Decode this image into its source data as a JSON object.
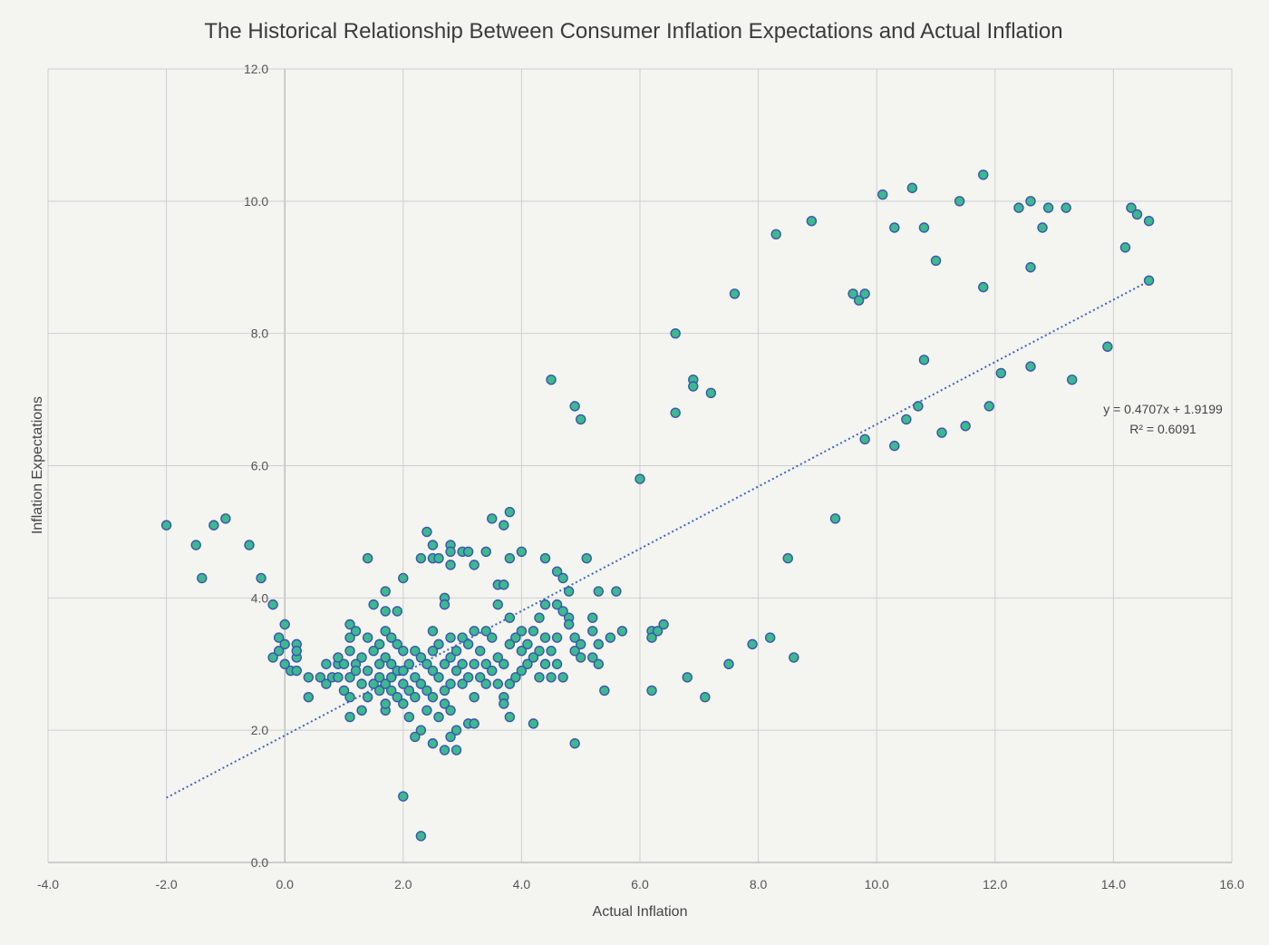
{
  "chart_data": {
    "type": "scatter",
    "title": "The Historical Relationship Between Consumer Inflation Expectations and Actual Inflation",
    "xlabel": "Actual Inflation",
    "ylabel": "Inflation Expectations",
    "xlim": [
      -4,
      16
    ],
    "ylim": [
      0,
      12
    ],
    "x_ticks": [
      "-4.0",
      "-2.0",
      "0.0",
      "2.0",
      "4.0",
      "6.0",
      "8.0",
      "10.0",
      "12.0",
      "14.0",
      "16.0"
    ],
    "y_ticks": [
      "0.0",
      "2.0",
      "4.0",
      "6.0",
      "8.0",
      "10.0",
      "12.0"
    ],
    "grid": true,
    "legend": "none",
    "trendline": {
      "slope": 0.4707,
      "intercept": 1.9199,
      "x_range": [
        -2.0,
        14.6
      ],
      "equation": "y = 0.4707x + 1.9199",
      "r_squared": "R² = 0.6091",
      "style": "dotted"
    },
    "colors": {
      "marker_fill": "#3cb98e",
      "marker_edge": "#3a55b0",
      "trendline": "#3a65c4",
      "background": "#f4f4f0",
      "grid": "#cfcfcf"
    },
    "points": [
      [
        -2.0,
        5.1
      ],
      [
        -1.5,
        4.8
      ],
      [
        -1.4,
        4.3
      ],
      [
        -1.2,
        5.1
      ],
      [
        -1.0,
        5.2
      ],
      [
        -0.6,
        4.8
      ],
      [
        -0.4,
        4.3
      ],
      [
        -0.2,
        3.9
      ],
      [
        -0.2,
        3.1
      ],
      [
        -0.1,
        3.2
      ],
      [
        -0.1,
        3.4
      ],
      [
        0.0,
        3.3
      ],
      [
        0.0,
        3.6
      ],
      [
        0.0,
        3.0
      ],
      [
        0.1,
        2.9
      ],
      [
        0.2,
        3.1
      ],
      [
        0.2,
        3.3
      ],
      [
        0.2,
        2.9
      ],
      [
        0.2,
        3.2
      ],
      [
        0.4,
        2.8
      ],
      [
        0.4,
        2.5
      ],
      [
        0.6,
        2.8
      ],
      [
        0.7,
        3.0
      ],
      [
        0.7,
        2.7
      ],
      [
        0.8,
        2.8
      ],
      [
        0.9,
        2.8
      ],
      [
        0.9,
        3.0
      ],
      [
        0.9,
        3.1
      ],
      [
        1.0,
        2.6
      ],
      [
        1.0,
        3.0
      ],
      [
        1.1,
        2.2
      ],
      [
        1.1,
        2.5
      ],
      [
        1.1,
        2.8
      ],
      [
        1.1,
        3.2
      ],
      [
        1.1,
        3.4
      ],
      [
        1.1,
        3.6
      ],
      [
        1.2,
        3.0
      ],
      [
        1.2,
        3.5
      ],
      [
        1.2,
        2.9
      ],
      [
        1.3,
        2.3
      ],
      [
        1.3,
        2.7
      ],
      [
        1.3,
        3.1
      ],
      [
        1.4,
        4.6
      ],
      [
        1.4,
        3.4
      ],
      [
        1.4,
        2.5
      ],
      [
        1.4,
        2.9
      ],
      [
        1.5,
        3.9
      ],
      [
        1.5,
        3.2
      ],
      [
        1.5,
        2.7
      ],
      [
        1.6,
        3.0
      ],
      [
        1.6,
        3.3
      ],
      [
        1.6,
        2.6
      ],
      [
        1.6,
        2.8
      ],
      [
        1.7,
        4.1
      ],
      [
        1.7,
        3.8
      ],
      [
        1.7,
        3.5
      ],
      [
        1.7,
        3.1
      ],
      [
        1.7,
        2.7
      ],
      [
        1.7,
        2.3
      ],
      [
        1.7,
        2.4
      ],
      [
        1.8,
        3.4
      ],
      [
        1.8,
        3.0
      ],
      [
        1.8,
        2.6
      ],
      [
        1.8,
        2.8
      ],
      [
        1.9,
        3.8
      ],
      [
        1.9,
        3.3
      ],
      [
        1.9,
        2.5
      ],
      [
        1.9,
        2.9
      ],
      [
        2.0,
        4.3
      ],
      [
        2.0,
        3.2
      ],
      [
        2.0,
        2.7
      ],
      [
        2.0,
        2.4
      ],
      [
        2.0,
        1.0
      ],
      [
        2.0,
        2.9
      ],
      [
        2.1,
        3.0
      ],
      [
        2.1,
        2.6
      ],
      [
        2.1,
        2.2
      ],
      [
        2.2,
        3.2
      ],
      [
        2.2,
        2.8
      ],
      [
        2.2,
        2.5
      ],
      [
        2.2,
        1.9
      ],
      [
        2.3,
        4.6
      ],
      [
        2.3,
        3.1
      ],
      [
        2.3,
        2.7
      ],
      [
        2.3,
        2.0
      ],
      [
        2.3,
        0.4
      ],
      [
        2.4,
        5.0
      ],
      [
        2.4,
        3.0
      ],
      [
        2.4,
        2.6
      ],
      [
        2.4,
        2.3
      ],
      [
        2.5,
        4.8
      ],
      [
        2.5,
        4.6
      ],
      [
        2.5,
        3.5
      ],
      [
        2.5,
        3.2
      ],
      [
        2.5,
        2.9
      ],
      [
        2.5,
        2.5
      ],
      [
        2.5,
        1.8
      ],
      [
        2.6,
        4.6
      ],
      [
        2.6,
        3.3
      ],
      [
        2.6,
        2.8
      ],
      [
        2.6,
        2.2
      ],
      [
        2.7,
        4.0
      ],
      [
        2.7,
        3.9
      ],
      [
        2.7,
        3.0
      ],
      [
        2.7,
        2.6
      ],
      [
        2.7,
        2.4
      ],
      [
        2.7,
        1.7
      ],
      [
        2.8,
        4.8
      ],
      [
        2.8,
        4.7
      ],
      [
        2.8,
        4.5
      ],
      [
        2.8,
        3.4
      ],
      [
        2.8,
        3.1
      ],
      [
        2.8,
        2.7
      ],
      [
        2.8,
        2.3
      ],
      [
        2.8,
        1.9
      ],
      [
        2.9,
        3.2
      ],
      [
        2.9,
        2.9
      ],
      [
        2.9,
        2.0
      ],
      [
        2.9,
        1.7
      ],
      [
        3.0,
        4.7
      ],
      [
        3.0,
        3.4
      ],
      [
        3.0,
        3.0
      ],
      [
        3.0,
        2.7
      ],
      [
        3.1,
        4.7
      ],
      [
        3.1,
        3.3
      ],
      [
        3.1,
        2.8
      ],
      [
        3.1,
        2.1
      ],
      [
        3.2,
        4.5
      ],
      [
        3.2,
        3.5
      ],
      [
        3.2,
        3.0
      ],
      [
        3.2,
        2.5
      ],
      [
        3.2,
        2.1
      ],
      [
        3.3,
        3.2
      ],
      [
        3.3,
        2.8
      ],
      [
        3.4,
        4.7
      ],
      [
        3.4,
        3.5
      ],
      [
        3.4,
        3.0
      ],
      [
        3.4,
        2.7
      ],
      [
        3.5,
        5.2
      ],
      [
        3.5,
        3.4
      ],
      [
        3.5,
        2.9
      ],
      [
        3.6,
        4.2
      ],
      [
        3.6,
        3.9
      ],
      [
        3.6,
        3.1
      ],
      [
        3.6,
        2.7
      ],
      [
        3.7,
        5.1
      ],
      [
        3.7,
        4.2
      ],
      [
        3.7,
        3.0
      ],
      [
        3.7,
        2.5
      ],
      [
        3.7,
        2.4
      ],
      [
        3.8,
        5.3
      ],
      [
        3.8,
        4.6
      ],
      [
        3.8,
        3.7
      ],
      [
        3.8,
        3.3
      ],
      [
        3.8,
        2.7
      ],
      [
        3.8,
        2.2
      ],
      [
        3.9,
        3.4
      ],
      [
        3.9,
        2.8
      ],
      [
        4.0,
        4.7
      ],
      [
        4.0,
        3.5
      ],
      [
        4.0,
        3.2
      ],
      [
        4.0,
        2.9
      ],
      [
        4.1,
        3.3
      ],
      [
        4.1,
        3.0
      ],
      [
        4.2,
        3.5
      ],
      [
        4.2,
        3.1
      ],
      [
        4.2,
        2.1
      ],
      [
        4.3,
        3.7
      ],
      [
        4.3,
        3.2
      ],
      [
        4.3,
        2.8
      ],
      [
        4.4,
        4.6
      ],
      [
        4.4,
        3.9
      ],
      [
        4.4,
        3.4
      ],
      [
        4.4,
        3.0
      ],
      [
        4.5,
        7.3
      ],
      [
        4.5,
        3.2
      ],
      [
        4.5,
        2.8
      ],
      [
        4.6,
        4.4
      ],
      [
        4.6,
        3.9
      ],
      [
        4.6,
        3.4
      ],
      [
        4.6,
        3.0
      ],
      [
        4.7,
        4.3
      ],
      [
        4.7,
        3.8
      ],
      [
        4.7,
        2.8
      ],
      [
        4.8,
        4.1
      ],
      [
        4.8,
        3.7
      ],
      [
        4.8,
        3.6
      ],
      [
        4.9,
        6.9
      ],
      [
        4.9,
        3.4
      ],
      [
        4.9,
        3.2
      ],
      [
        4.9,
        1.8
      ],
      [
        5.0,
        6.7
      ],
      [
        5.0,
        3.3
      ],
      [
        5.0,
        3.1
      ],
      [
        5.1,
        4.6
      ],
      [
        5.2,
        3.7
      ],
      [
        5.2,
        3.5
      ],
      [
        5.2,
        3.1
      ],
      [
        5.3,
        4.1
      ],
      [
        5.3,
        3.3
      ],
      [
        5.3,
        3.0
      ],
      [
        5.4,
        2.6
      ],
      [
        5.5,
        3.4
      ],
      [
        5.6,
        4.1
      ],
      [
        5.7,
        3.5
      ],
      [
        6.0,
        5.8
      ],
      [
        6.2,
        3.5
      ],
      [
        6.2,
        3.4
      ],
      [
        6.2,
        2.6
      ],
      [
        6.3,
        3.5
      ],
      [
        6.4,
        3.6
      ],
      [
        6.6,
        8.0
      ],
      [
        6.6,
        6.8
      ],
      [
        6.8,
        2.8
      ],
      [
        6.9,
        7.3
      ],
      [
        6.9,
        7.2
      ],
      [
        7.1,
        2.5
      ],
      [
        7.2,
        7.1
      ],
      [
        7.5,
        3.0
      ],
      [
        7.6,
        8.6
      ],
      [
        7.9,
        3.3
      ],
      [
        8.2,
        3.4
      ],
      [
        8.3,
        9.5
      ],
      [
        8.5,
        4.6
      ],
      [
        8.6,
        3.1
      ],
      [
        8.9,
        9.7
      ],
      [
        9.3,
        5.2
      ],
      [
        9.6,
        8.6
      ],
      [
        9.7,
        8.5
      ],
      [
        9.8,
        8.6
      ],
      [
        9.8,
        6.4
      ],
      [
        10.1,
        10.1
      ],
      [
        10.3,
        9.6
      ],
      [
        10.3,
        6.3
      ],
      [
        10.5,
        6.7
      ],
      [
        10.6,
        10.2
      ],
      [
        10.7,
        6.9
      ],
      [
        10.8,
        9.6
      ],
      [
        10.8,
        7.6
      ],
      [
        11.0,
        9.1
      ],
      [
        11.1,
        6.5
      ],
      [
        11.4,
        10.0
      ],
      [
        11.5,
        6.6
      ],
      [
        11.8,
        10.4
      ],
      [
        11.8,
        8.7
      ],
      [
        11.9,
        6.9
      ],
      [
        12.1,
        7.4
      ],
      [
        12.4,
        9.9
      ],
      [
        12.6,
        10.0
      ],
      [
        12.6,
        9.0
      ],
      [
        12.6,
        7.5
      ],
      [
        12.8,
        9.6
      ],
      [
        12.9,
        9.9
      ],
      [
        13.2,
        9.9
      ],
      [
        13.3,
        7.3
      ],
      [
        13.9,
        7.8
      ],
      [
        14.2,
        9.3
      ],
      [
        14.3,
        9.9
      ],
      [
        14.4,
        9.8
      ],
      [
        14.6,
        9.7
      ],
      [
        14.6,
        8.8
      ]
    ]
  }
}
